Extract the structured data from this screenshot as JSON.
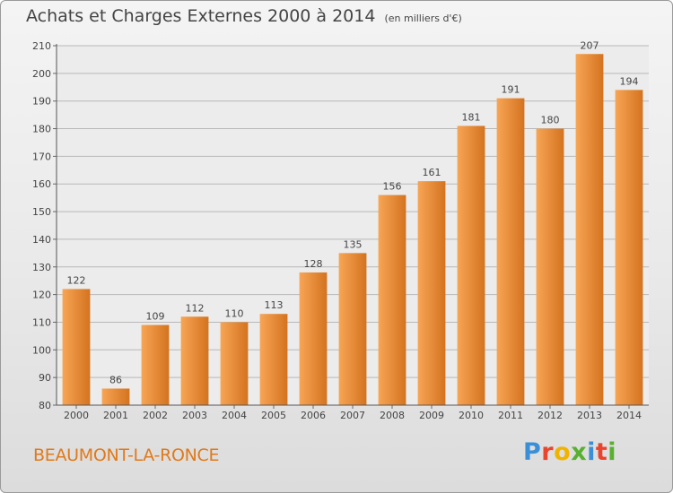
{
  "header": {
    "title": "Achats et Charges Externes 2000 à 2014",
    "subtitle": "(en milliers d'€)"
  },
  "footer": {
    "city": "BEAUMONT-LA-RONCE",
    "logo_text": "Proxiti",
    "logo_colors": [
      "#3a8fd6",
      "#e8442e",
      "#f0b400",
      "#58b030",
      "#3a8fd6",
      "#e8442e",
      "#58b030"
    ]
  },
  "chart_data": {
    "type": "bar",
    "title": "Achats et Charges Externes 2000 à 2014",
    "subtitle": "(en milliers d'€)",
    "categories": [
      "2000",
      "2001",
      "2002",
      "2003",
      "2004",
      "2005",
      "2006",
      "2007",
      "2008",
      "2009",
      "2010",
      "2011",
      "2012",
      "2013",
      "2014"
    ],
    "values": [
      122,
      86,
      109,
      112,
      110,
      113,
      128,
      135,
      156,
      161,
      181,
      191,
      180,
      207,
      194
    ],
    "ylim": [
      80,
      210
    ],
    "yticks": [
      80,
      90,
      100,
      110,
      120,
      130,
      140,
      150,
      160,
      170,
      180,
      190,
      200,
      210
    ],
    "grid": true,
    "bar_color_light": "#f7a555",
    "bar_color_dark": "#d4731f",
    "xlabel": "",
    "ylabel": ""
  }
}
